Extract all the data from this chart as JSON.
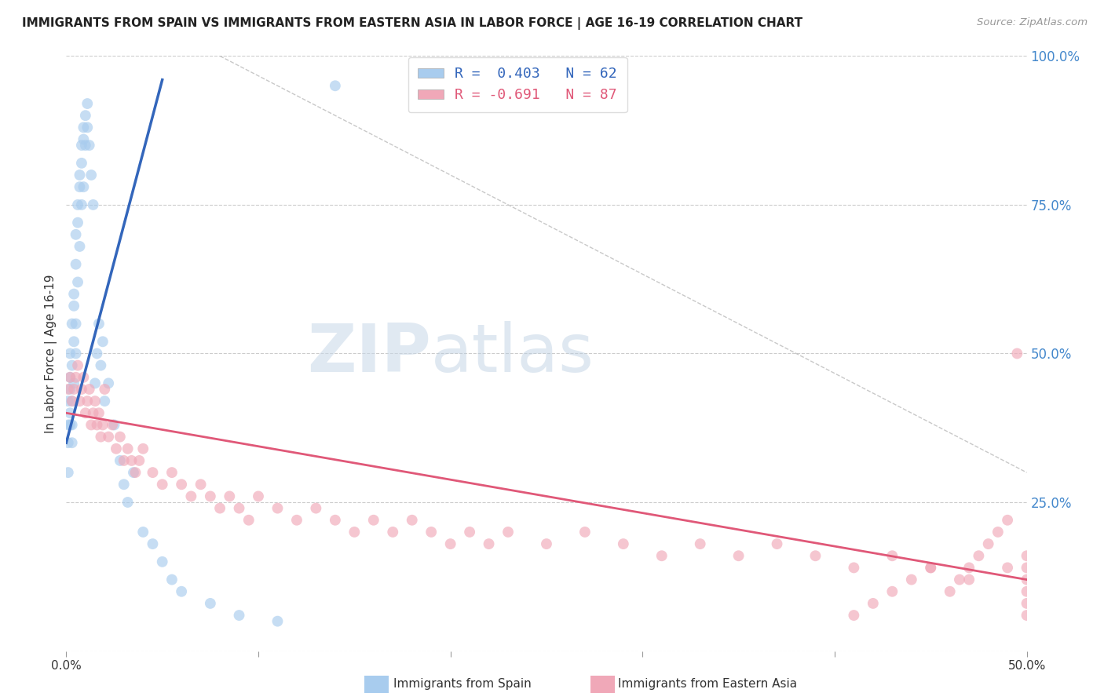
{
  "title": "IMMIGRANTS FROM SPAIN VS IMMIGRANTS FROM EASTERN ASIA IN LABOR FORCE | AGE 16-19 CORRELATION CHART",
  "source": "Source: ZipAtlas.com",
  "ylabel": "In Labor Force | Age 16-19",
  "color_blue": "#A8CCEE",
  "color_blue_line": "#3366BB",
  "color_pink": "#F0A8B8",
  "color_pink_line": "#E05878",
  "watermark_zip": "ZIP",
  "watermark_atlas": "atlas",
  "legend_line1": "R =  0.403   N = 62",
  "legend_line2": "R = -0.691   N = 87",
  "legend_label_blue": "Immigrants from Spain",
  "legend_label_pink": "Immigrants from Eastern Asia",
  "xlim": [
    0.0,
    0.5
  ],
  "ylim": [
    0.0,
    1.0
  ],
  "xtick_vals": [
    0.0,
    0.1,
    0.2,
    0.3,
    0.4,
    0.5
  ],
  "xtick_labels": [
    "0.0%",
    "",
    "",
    "",
    "",
    "50.0%"
  ],
  "ytick_vals": [
    0.0,
    0.25,
    0.5,
    0.75,
    1.0
  ],
  "ytick_labels_right": [
    "",
    "25.0%",
    "50.0%",
    "75.0%",
    "100.0%"
  ],
  "blue_line_x0": 0.0,
  "blue_line_x1": 0.05,
  "blue_line_y0": 0.35,
  "blue_line_y1": 0.96,
  "pink_line_x0": 0.0,
  "pink_line_x1": 0.5,
  "pink_line_y0": 0.4,
  "pink_line_y1": 0.12,
  "dash_line_x0": 0.08,
  "dash_line_x1": 0.5,
  "dash_line_y0": 1.0,
  "dash_line_y1": 0.3,
  "blue_x": [
    0.001,
    0.001,
    0.001,
    0.001,
    0.002,
    0.002,
    0.002,
    0.002,
    0.002,
    0.003,
    0.003,
    0.003,
    0.003,
    0.003,
    0.004,
    0.004,
    0.004,
    0.004,
    0.005,
    0.005,
    0.005,
    0.005,
    0.006,
    0.006,
    0.006,
    0.007,
    0.007,
    0.007,
    0.008,
    0.008,
    0.008,
    0.009,
    0.009,
    0.009,
    0.01,
    0.01,
    0.011,
    0.011,
    0.012,
    0.013,
    0.014,
    0.015,
    0.016,
    0.017,
    0.018,
    0.019,
    0.02,
    0.022,
    0.025,
    0.028,
    0.03,
    0.032,
    0.035,
    0.04,
    0.045,
    0.05,
    0.055,
    0.06,
    0.075,
    0.09,
    0.11,
    0.14
  ],
  "blue_y": [
    0.38,
    0.42,
    0.35,
    0.3,
    0.44,
    0.46,
    0.4,
    0.38,
    0.5,
    0.48,
    0.55,
    0.42,
    0.38,
    0.35,
    0.6,
    0.58,
    0.52,
    0.45,
    0.7,
    0.65,
    0.55,
    0.5,
    0.75,
    0.72,
    0.62,
    0.8,
    0.78,
    0.68,
    0.85,
    0.82,
    0.75,
    0.88,
    0.86,
    0.78,
    0.9,
    0.85,
    0.92,
    0.88,
    0.85,
    0.8,
    0.75,
    0.45,
    0.5,
    0.55,
    0.48,
    0.52,
    0.42,
    0.45,
    0.38,
    0.32,
    0.28,
    0.25,
    0.3,
    0.2,
    0.18,
    0.15,
    0.12,
    0.1,
    0.08,
    0.06,
    0.05,
    0.95
  ],
  "pink_x": [
    0.001,
    0.002,
    0.003,
    0.004,
    0.005,
    0.006,
    0.007,
    0.008,
    0.009,
    0.01,
    0.011,
    0.012,
    0.013,
    0.014,
    0.015,
    0.016,
    0.017,
    0.018,
    0.019,
    0.02,
    0.022,
    0.024,
    0.026,
    0.028,
    0.03,
    0.032,
    0.034,
    0.036,
    0.038,
    0.04,
    0.045,
    0.05,
    0.055,
    0.06,
    0.065,
    0.07,
    0.075,
    0.08,
    0.085,
    0.09,
    0.095,
    0.1,
    0.11,
    0.12,
    0.13,
    0.14,
    0.15,
    0.16,
    0.17,
    0.18,
    0.19,
    0.2,
    0.21,
    0.22,
    0.23,
    0.25,
    0.27,
    0.29,
    0.31,
    0.33,
    0.35,
    0.37,
    0.39,
    0.41,
    0.43,
    0.45,
    0.47,
    0.49,
    0.5,
    0.5,
    0.5,
    0.5,
    0.5,
    0.5,
    0.495,
    0.49,
    0.485,
    0.48,
    0.475,
    0.47,
    0.465,
    0.46,
    0.45,
    0.44,
    0.43,
    0.42,
    0.41
  ],
  "pink_y": [
    0.44,
    0.46,
    0.42,
    0.44,
    0.46,
    0.48,
    0.42,
    0.44,
    0.46,
    0.4,
    0.42,
    0.44,
    0.38,
    0.4,
    0.42,
    0.38,
    0.4,
    0.36,
    0.38,
    0.44,
    0.36,
    0.38,
    0.34,
    0.36,
    0.32,
    0.34,
    0.32,
    0.3,
    0.32,
    0.34,
    0.3,
    0.28,
    0.3,
    0.28,
    0.26,
    0.28,
    0.26,
    0.24,
    0.26,
    0.24,
    0.22,
    0.26,
    0.24,
    0.22,
    0.24,
    0.22,
    0.2,
    0.22,
    0.2,
    0.22,
    0.2,
    0.18,
    0.2,
    0.18,
    0.2,
    0.18,
    0.2,
    0.18,
    0.16,
    0.18,
    0.16,
    0.18,
    0.16,
    0.14,
    0.16,
    0.14,
    0.12,
    0.14,
    0.16,
    0.06,
    0.14,
    0.12,
    0.1,
    0.08,
    0.5,
    0.22,
    0.2,
    0.18,
    0.16,
    0.14,
    0.12,
    0.1,
    0.14,
    0.12,
    0.1,
    0.08,
    0.06
  ]
}
